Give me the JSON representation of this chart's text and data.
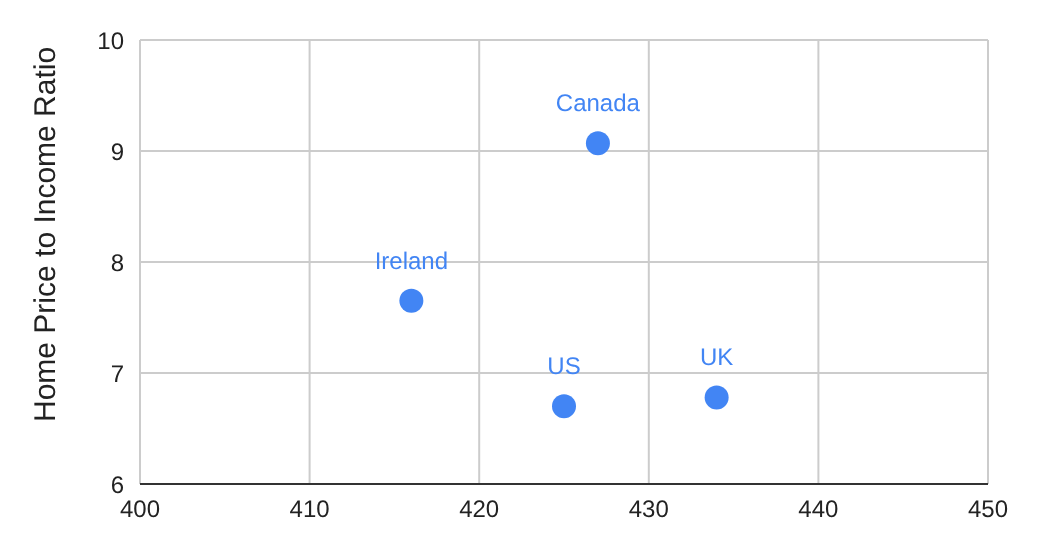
{
  "chart_data": {
    "type": "scatter",
    "ylabel": "Home Price to Income Ratio",
    "x": [
      427,
      416,
      425,
      434
    ],
    "values": [
      9.07,
      7.65,
      6.7,
      6.78
    ],
    "color": "#4285f4",
    "annotations": [
      {
        "text": "Canada",
        "x": 427,
        "y": 9.07
      },
      {
        "text": "Ireland",
        "x": 416,
        "y": 7.65
      },
      {
        "text": "US",
        "x": 425,
        "y": 6.7
      },
      {
        "text": "UK",
        "x": 434,
        "y": 6.78
      }
    ],
    "xlim": [
      400,
      450
    ],
    "xticks": [
      400,
      410,
      420,
      430,
      440,
      450
    ],
    "ylim": [
      6,
      10
    ],
    "yticks": [
      6,
      7,
      8,
      9,
      10
    ],
    "grid": true,
    "marker": "circle"
  }
}
